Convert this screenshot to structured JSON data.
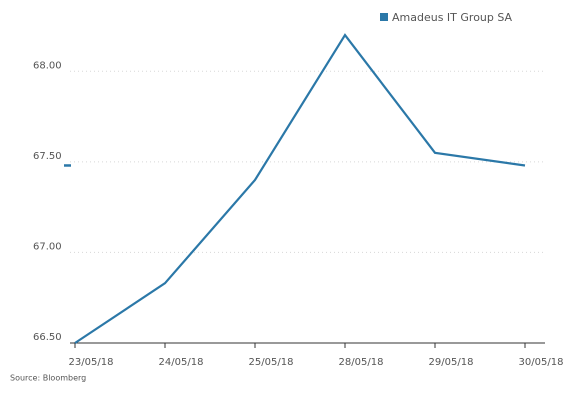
{
  "chart_data": {
    "type": "line",
    "categories": [
      "23/05/18",
      "24/05/18",
      "25/05/18",
      "28/05/18",
      "29/05/18",
      "30/05/18"
    ],
    "series": [
      {
        "name": "Amadeus IT Group SA",
        "color": "#2b78a8",
        "values": [
          66.5,
          66.83,
          67.4,
          68.2,
          67.55,
          67.48
        ]
      }
    ],
    "ylim": [
      66.5,
      68.25
    ],
    "yticks": [
      {
        "value": 66.5,
        "label": "66.50"
      },
      {
        "value": 67,
        "label": "67.00"
      },
      {
        "value": 67.5,
        "label": "67.50"
      },
      {
        "value": 68,
        "label": "68.00"
      }
    ],
    "grid": true,
    "legend": "top-right",
    "source": "Source: Bloomberg"
  }
}
